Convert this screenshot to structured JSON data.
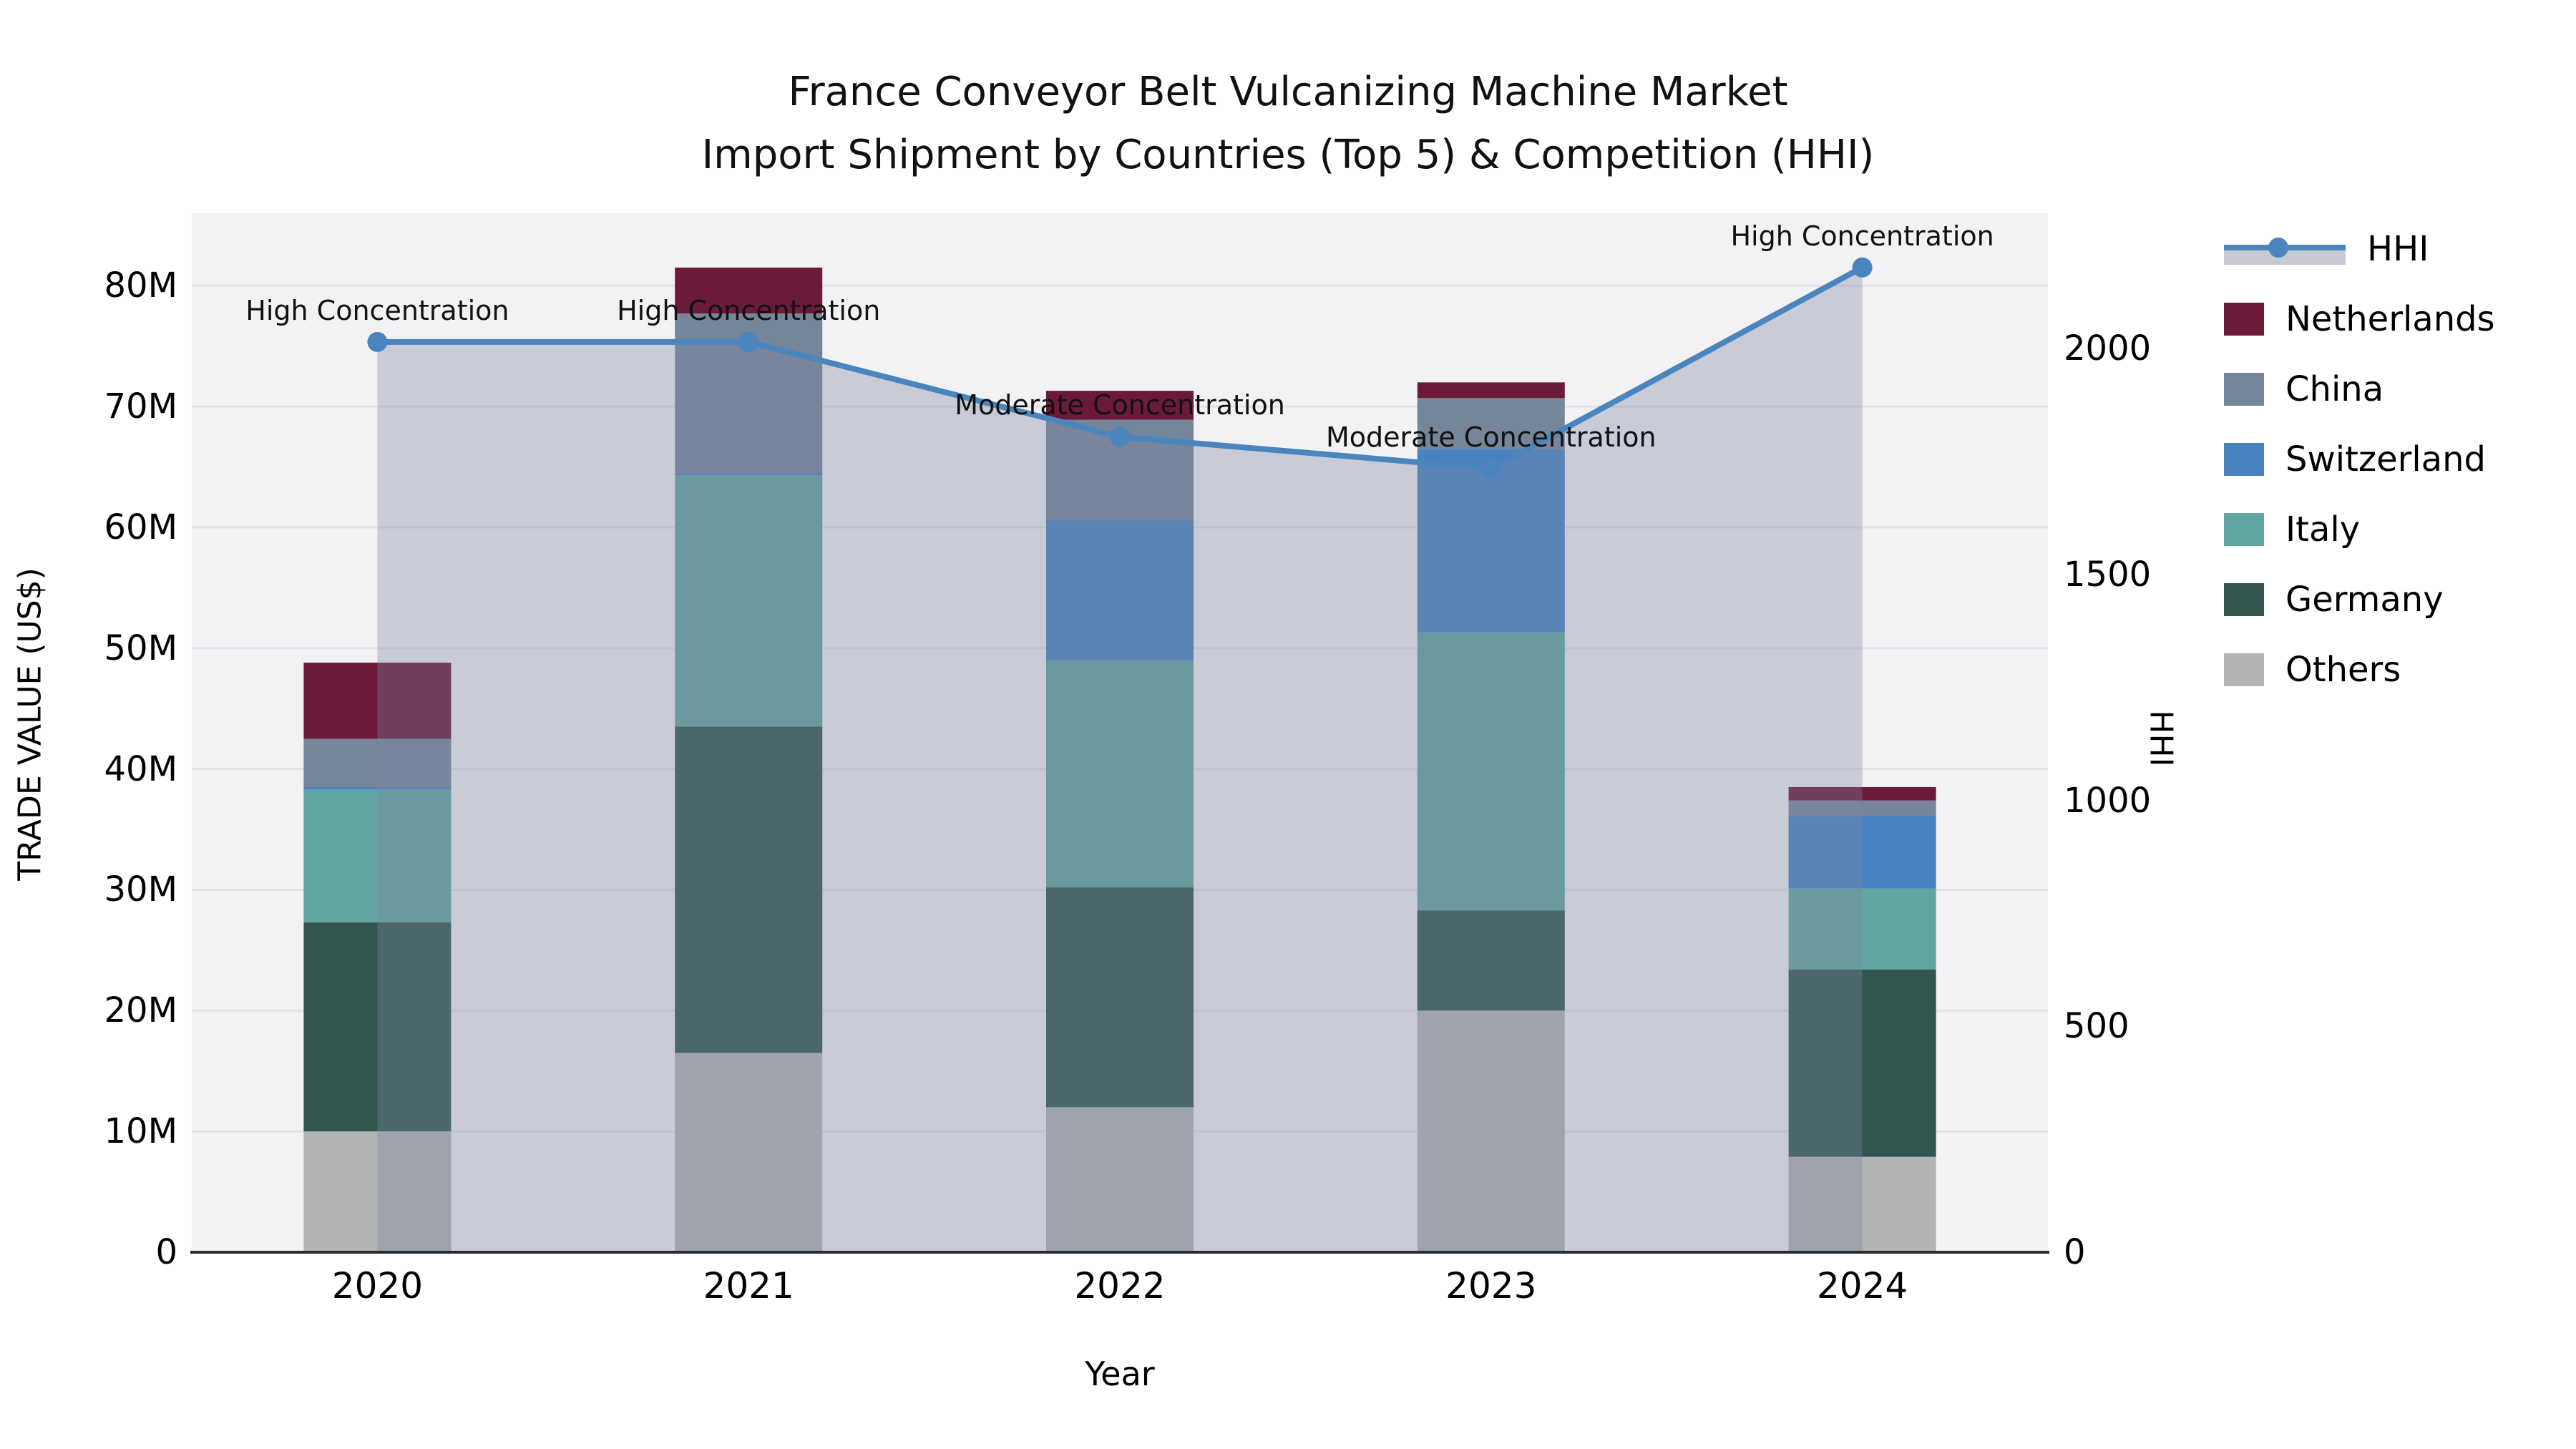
{
  "title": {
    "line1": "France Conveyor Belt Vulcanizing Machine Market",
    "line2": "Import Shipment by Countries (Top 5) & Competition (HHI)"
  },
  "axes": {
    "left": {
      "title": "TRADE VALUE (US$)",
      "tick_labels": [
        "0",
        "10M",
        "20M",
        "30M",
        "40M",
        "50M",
        "60M",
        "70M",
        "80M"
      ],
      "tick_values_m": [
        0,
        10,
        20,
        30,
        40,
        50,
        60,
        70,
        80
      ]
    },
    "right": {
      "title": "HHI",
      "tick_labels": [
        "0",
        "500",
        "1000",
        "1500",
        "2000"
      ],
      "tick_values": [
        0,
        500,
        1000,
        1500,
        2000
      ]
    },
    "x": {
      "title": "Year"
    }
  },
  "legend": [
    {
      "label": "HHI",
      "type": "line-area",
      "color": "#4a86bd",
      "band_color": "rgba(125,135,160,0.45)"
    },
    {
      "label": "Netherlands",
      "type": "square",
      "color": "#6b1a39"
    },
    {
      "label": "China",
      "type": "square",
      "color": "#75859a"
    },
    {
      "label": "Switzerland",
      "type": "square",
      "color": "#4683c0"
    },
    {
      "label": "Italy",
      "type": "square",
      "color": "#61a4a0"
    },
    {
      "label": "Germany",
      "type": "square",
      "color": "#32564f"
    },
    {
      "label": "Others",
      "type": "square",
      "color": "#b1b4b2"
    }
  ],
  "chart_data": {
    "type": "bar",
    "subtype": "stacked-bars-with-line",
    "categories": [
      "2020",
      "2021",
      "2022",
      "2023",
      "2024"
    ],
    "value_unit": "million US$",
    "series": [
      {
        "name": "Others",
        "color": "#b1b4b2",
        "values": [
          10.0,
          16.5,
          12.0,
          20.0,
          7.9
        ]
      },
      {
        "name": "Germany",
        "color": "#32564f",
        "values": [
          17.3,
          27.0,
          18.2,
          8.3,
          15.5
        ]
      },
      {
        "name": "Italy",
        "color": "#61a4a0",
        "values": [
          11.0,
          20.8,
          18.8,
          23.0,
          6.7
        ]
      },
      {
        "name": "Switzerland",
        "color": "#4683c0",
        "values": [
          0.2,
          0.2,
          11.6,
          15.2,
          6.0
        ]
      },
      {
        "name": "China",
        "color": "#75859a",
        "values": [
          4.0,
          13.2,
          8.3,
          4.2,
          1.3
        ]
      },
      {
        "name": "Netherlands",
        "color": "#6b1a39",
        "values": [
          6.3,
          3.8,
          2.4,
          1.3,
          1.1
        ]
      }
    ],
    "bar_totals_m": [
      48.8,
      81.5,
      71.3,
      72.0,
      38.5
    ],
    "hhi": {
      "name": "HHI",
      "line_color": "#4a86bd",
      "fill_color": "rgba(125,135,160,0.35)",
      "values": [
        2015,
        2015,
        1805,
        1735,
        2180
      ],
      "point_labels": [
        "High Concentration",
        "High Concentration",
        "Moderate Concentration",
        "Moderate Concentration",
        "High Concentration"
      ]
    },
    "xlabel": "Year",
    "ylabel_left": "TRADE VALUE (US$)",
    "ylabel_right": "HHI",
    "ylim_left_m": [
      0,
      86
    ],
    "ylim_right": [
      0,
      2300
    ],
    "grid": "horizontal",
    "legend_position": "right",
    "plot_bg": "#f2f2f4",
    "grid_color": "#e1e2e6",
    "axisline_color": "#2b2b2b"
  }
}
